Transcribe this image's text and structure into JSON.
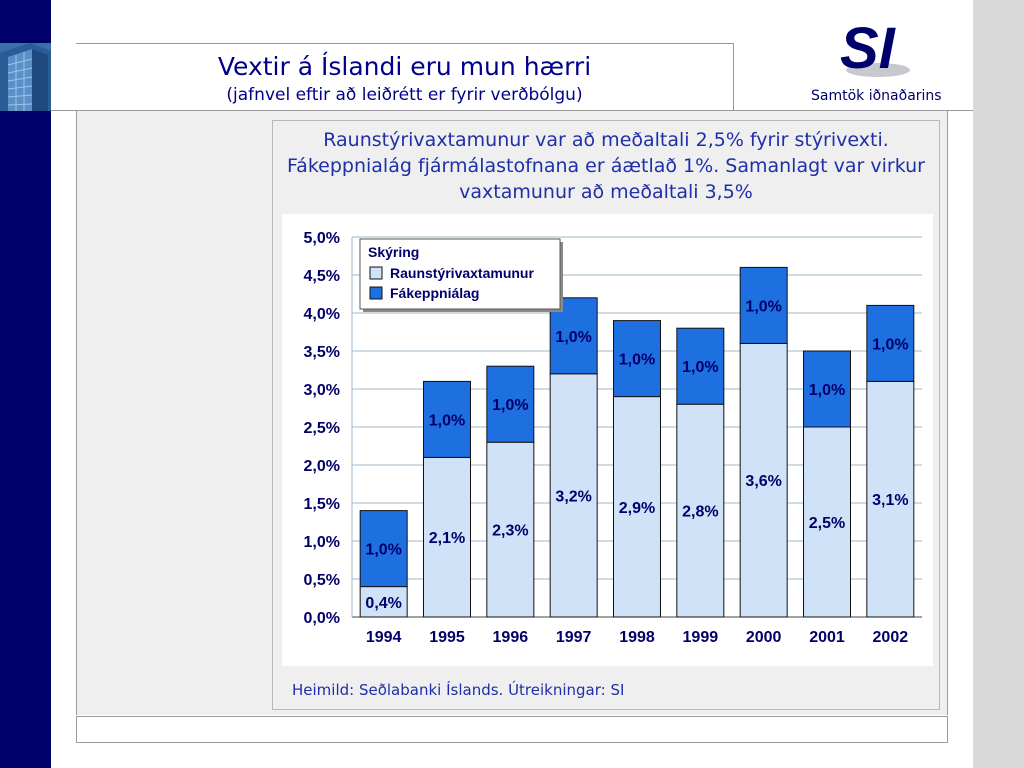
{
  "header": {
    "title": "Vextir á Íslandi eru mun hærri",
    "subtitle": "(jafnvel eftir að leiðrétt er fyrir verðbólgu)"
  },
  "logo": {
    "mark": "SI",
    "name": "Samtök iðnaðarins"
  },
  "description": "Raunstýrivaxtamunur var að meðaltali 2,5% fyrir stýrivexti. Fákeppnialág fjármálastofnana er áætlað 1%. Samanlagt var virkur vaxtamunur að meðaltali 3,5%",
  "source": "Heimild: Seðlabanki Íslands. Útreikningar: SI",
  "colors": {
    "navy": "#00006a",
    "light_bar": "#cfe2f8",
    "dark_bar": "#1e6fe0",
    "text_blue": "#1f2fa8"
  },
  "chart_data": {
    "type": "bar",
    "stacked": true,
    "categories": [
      "1994",
      "1995",
      "1996",
      "1997",
      "1998",
      "1999",
      "2000",
      "2001",
      "2002"
    ],
    "series": [
      {
        "name": "Raunstýrivaxtamunur",
        "values": [
          0.4,
          2.1,
          2.3,
          3.2,
          2.9,
          2.8,
          3.6,
          2.5,
          3.1
        ],
        "labels": [
          "0,4%",
          "2,1%",
          "2,3%",
          "3,2%",
          "2,9%",
          "2,8%",
          "3,6%",
          "2,5%",
          "3,1%"
        ],
        "color": "#cfe2f8"
      },
      {
        "name": "Fákeppniálag",
        "values": [
          1.0,
          1.0,
          1.0,
          1.0,
          1.0,
          1.0,
          1.0,
          1.0,
          1.0
        ],
        "labels": [
          "1,0%",
          "1,0%",
          "1,0%",
          "1,0%",
          "1,0%",
          "1,0%",
          "1,0%",
          "1,0%",
          "1,0%"
        ],
        "color": "#1e6fe0"
      }
    ],
    "yticks": [
      "0,0%",
      "0,5%",
      "1,0%",
      "1,5%",
      "2,0%",
      "2,5%",
      "3,0%",
      "3,5%",
      "4,0%",
      "4,5%",
      "5,0%"
    ],
    "ylim": [
      0,
      5
    ],
    "legend_title": "Skýring",
    "legend_position": "top-left",
    "grid": true
  }
}
